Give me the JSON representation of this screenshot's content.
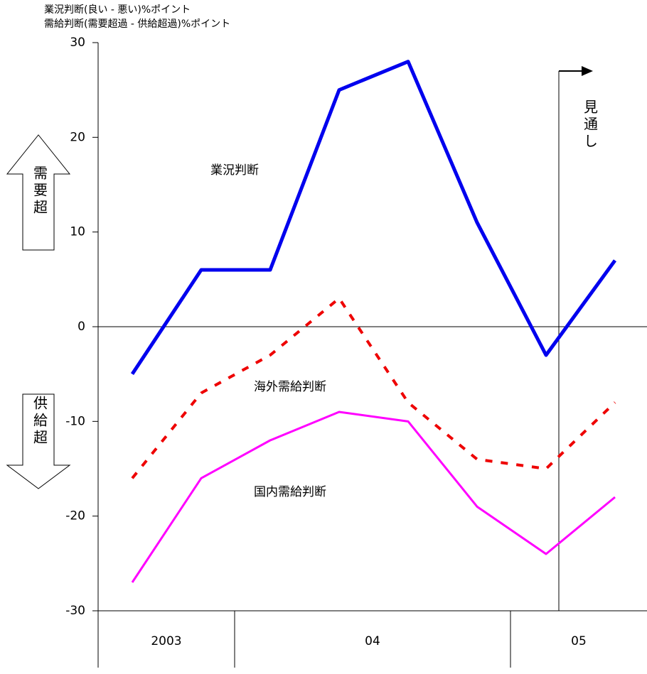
{
  "chart_data": {
    "type": "line",
    "axis_title": [
      "業況判断(良い - 悪い)%ポイント",
      "需給判断(需要超過 - 供給超過)%ポイント"
    ],
    "categories": [
      null,
      null,
      null,
      null,
      null,
      null,
      null,
      null
    ],
    "x_groups": [
      {
        "label": "2003",
        "count": 2
      },
      {
        "label": "04",
        "count": 4
      },
      {
        "label": "05",
        "count": 2
      }
    ],
    "series": [
      {
        "name": "業況判断",
        "color": "#0000ee",
        "style": "solid",
        "values": [
          -5,
          6,
          6,
          25,
          28,
          11,
          -3,
          7
        ]
      },
      {
        "name": "海外需給判断",
        "color": "#ee0000",
        "style": "dashed",
        "values": [
          -16,
          -7,
          -3,
          3,
          -8,
          -14,
          -15,
          -8
        ]
      },
      {
        "name": "国内需給判断",
        "color": "#ff00ff",
        "style": "solid",
        "values": [
          -27,
          -16,
          -12,
          -9,
          -10,
          -19,
          -24,
          -18
        ]
      }
    ],
    "ylim": [
      -30,
      30
    ],
    "yticks": [
      -30,
      -20,
      -10,
      0,
      10,
      20,
      30
    ],
    "grid": false,
    "annotations": {
      "forecast": "見通し",
      "demand": "需要超",
      "supply": "供給超"
    }
  }
}
